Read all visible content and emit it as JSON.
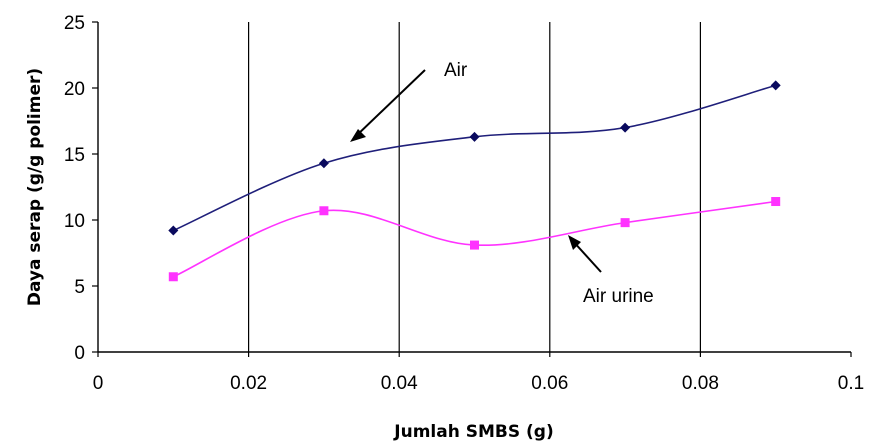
{
  "chart_data": {
    "type": "line",
    "title": "",
    "xlabel": "Jumlah SMBS (g)",
    "ylabel": "Daya serap (g/g polimer)",
    "xlim": [
      0,
      0.1
    ],
    "ylim": [
      0,
      25
    ],
    "x_ticks": [
      "0",
      "0.02",
      "0.04",
      "0.06",
      "0.08",
      "0.1"
    ],
    "y_ticks": [
      "0",
      "5",
      "10",
      "15",
      "20",
      "25"
    ],
    "grid": "vertical lines only",
    "smooth": true,
    "x": [
      0.01,
      0.03,
      0.05,
      0.07,
      0.09
    ],
    "series": [
      {
        "name": "Air",
        "values": [
          9.2,
          14.3,
          16.3,
          17.0,
          20.2
        ],
        "color": "#1f1f7a",
        "marker": "diamond",
        "marker_color": "#0a0a5e"
      },
      {
        "name": "Air urine",
        "values": [
          5.7,
          10.7,
          8.1,
          9.8,
          11.4
        ],
        "color": "#ff33ff",
        "marker": "square",
        "marker_color": "#ff33ff"
      }
    ],
    "annotations": [
      {
        "text": "Air",
        "arrow_to_series": "Air"
      },
      {
        "text": "Air urine",
        "arrow_to_series": "Air urine"
      }
    ]
  }
}
